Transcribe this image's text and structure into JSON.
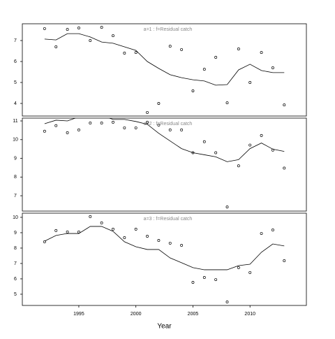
{
  "chart_data": [
    {
      "type": "line",
      "title": "a=1 : f=Residual catch",
      "x": [
        1992,
        1993,
        1994,
        1995,
        1996,
        1997,
        1998,
        1999,
        2000,
        2001,
        2002,
        2003,
        2004,
        2005,
        2006,
        2007,
        2008,
        2009,
        2010,
        2011,
        2012,
        2013
      ],
      "series": [
        {
          "style": "points",
          "color": "#000000",
          "values": [
            7.57,
            6.7,
            7.53,
            7.6,
            7.0,
            7.63,
            7.23,
            6.4,
            6.43,
            3.57,
            4.0,
            6.73,
            6.57,
            4.6,
            5.63,
            6.2,
            4.03,
            6.6,
            5.0,
            6.43,
            5.7,
            3.93
          ]
        },
        {
          "style": "line",
          "color": "#000000",
          "values": [
            7.07,
            7.03,
            7.33,
            7.33,
            7.17,
            6.93,
            6.87,
            6.7,
            6.53,
            6.0,
            5.67,
            5.37,
            5.23,
            5.13,
            5.07,
            4.87,
            4.9,
            5.6,
            5.87,
            5.57,
            5.47,
            5.47
          ]
        }
      ],
      "xlim": [
        1990.05,
        2014.94
      ],
      "ylim": [
        3.4,
        7.8
      ],
      "yticks": [
        4,
        5,
        6,
        7
      ]
    },
    {
      "type": "line",
      "title": "a=2 : f=Residual catch",
      "x": [
        1992,
        1993,
        1994,
        1995,
        1996,
        1997,
        1998,
        1999,
        2000,
        2001,
        2002,
        2003,
        2004,
        2005,
        2006,
        2007,
        2008,
        2009,
        2010,
        2011,
        2012,
        2013
      ],
      "series": [
        {
          "style": "points",
          "color": "#000000",
          "values": [
            10.45,
            10.75,
            10.37,
            10.52,
            10.89,
            10.89,
            10.93,
            10.63,
            10.63,
            10.93,
            10.78,
            10.52,
            10.52,
            9.3,
            9.89,
            9.3,
            6.4,
            8.6,
            9.71,
            10.22,
            9.44,
            8.48
          ]
        },
        {
          "style": "line",
          "color": "#000000",
          "values": [
            10.85,
            11.04,
            11.0,
            11.22,
            11.3,
            11.3,
            11.08,
            11.08,
            10.97,
            10.82,
            10.34,
            9.93,
            9.52,
            9.3,
            9.19,
            9.08,
            8.82,
            8.93,
            9.52,
            9.82,
            9.49,
            9.37
          ]
        }
      ],
      "xlim": [
        1990.05,
        2014.94
      ],
      "ylim": [
        6.18,
        11.15
      ],
      "yticks": [
        7,
        8,
        9,
        10,
        11
      ]
    },
    {
      "type": "line",
      "title": "a=3 : f=Residual catch",
      "xlabel": "Year",
      "x": [
        1992,
        1993,
        1994,
        1995,
        1996,
        1997,
        1998,
        1999,
        2000,
        2001,
        2002,
        2003,
        2004,
        2005,
        2006,
        2007,
        2008,
        2009,
        2010,
        2011,
        2012,
        2013
      ],
      "series": [
        {
          "style": "points",
          "color": "#000000",
          "values": [
            8.41,
            9.14,
            9.05,
            9.05,
            10.05,
            9.64,
            9.23,
            8.68,
            9.23,
            8.77,
            8.5,
            8.32,
            8.18,
            5.77,
            6.09,
            5.95,
            4.5,
            6.73,
            6.41,
            8.95,
            9.18,
            7.18
          ]
        },
        {
          "style": "line",
          "color": "#000000",
          "values": [
            8.45,
            8.82,
            8.95,
            8.95,
            9.41,
            9.41,
            9.09,
            8.41,
            8.09,
            7.91,
            7.91,
            7.36,
            7.05,
            6.73,
            6.59,
            6.59,
            6.59,
            6.86,
            6.95,
            7.73,
            8.27,
            8.14
          ]
        }
      ],
      "xlim": [
        1990.05,
        2014.94
      ],
      "ylim": [
        4.27,
        10.27
      ],
      "yticks": [
        5,
        6,
        7,
        8,
        9,
        10
      ],
      "xticks": [
        1995,
        2000,
        2005,
        2010
      ]
    }
  ]
}
